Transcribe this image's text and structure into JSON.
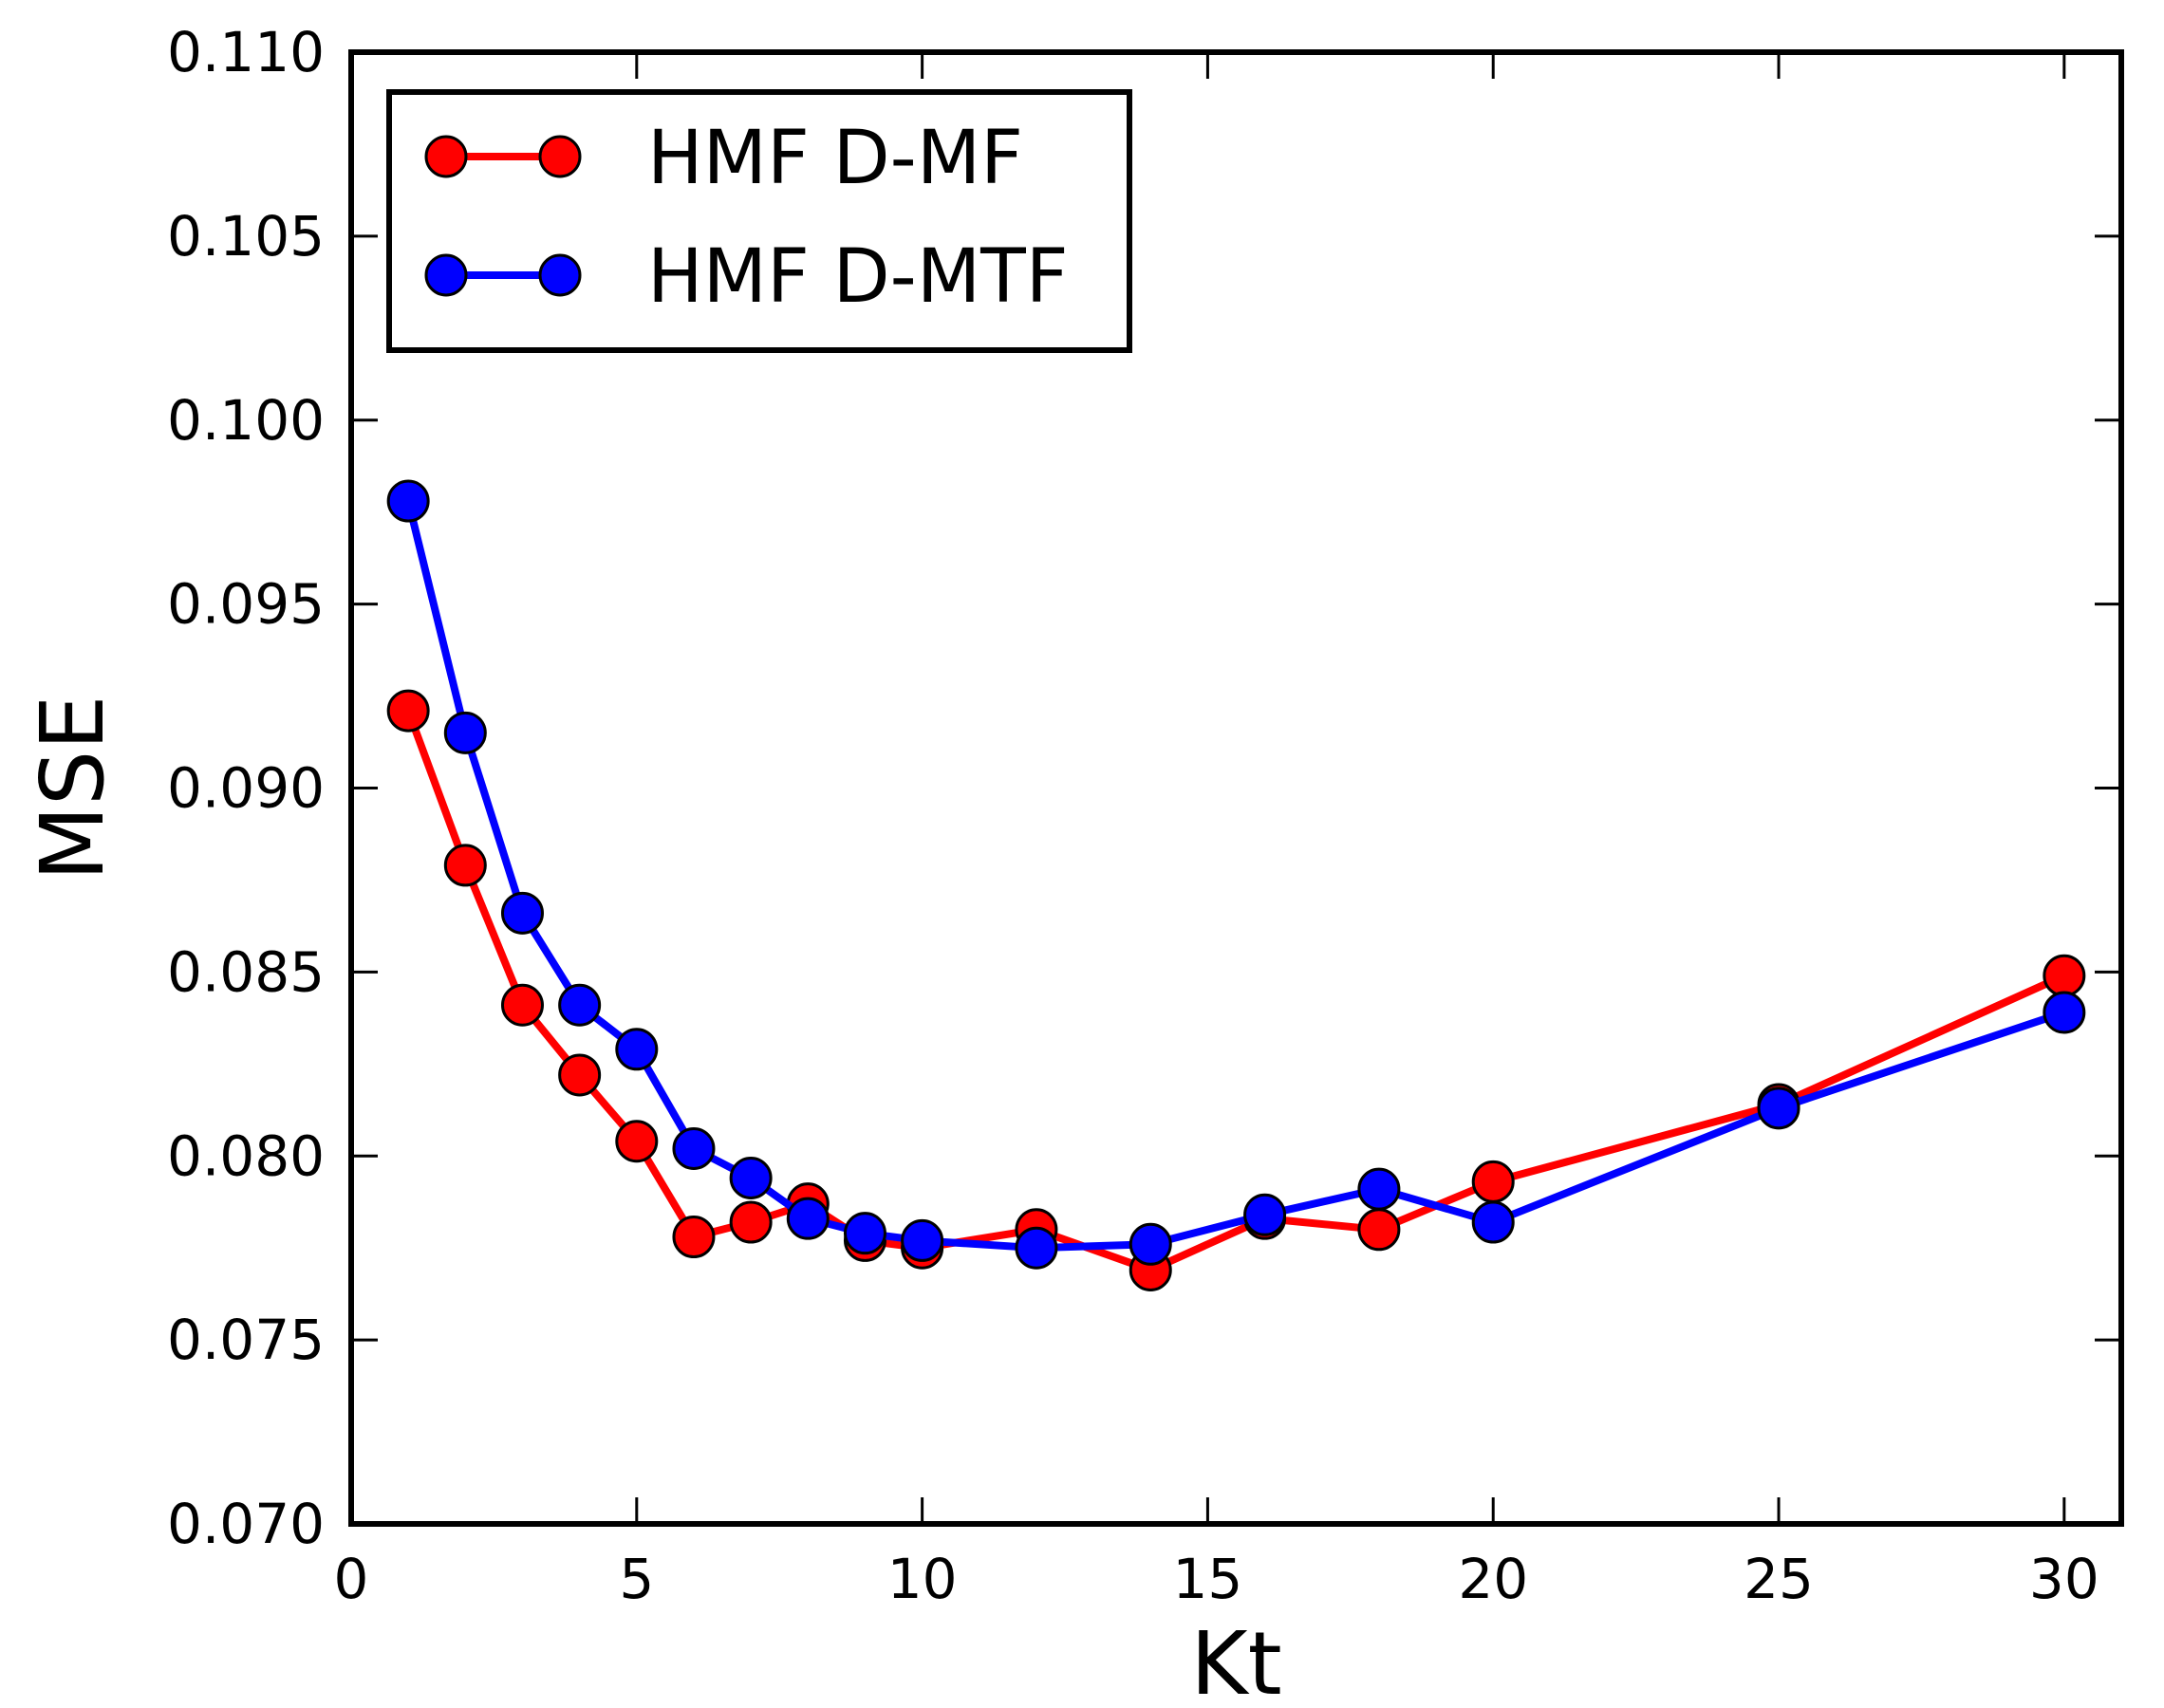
{
  "chart_data": {
    "type": "line",
    "xlabel": "Kt",
    "ylabel": "MSE",
    "xlim": [
      0,
      31
    ],
    "ylim": [
      0.07,
      0.11
    ],
    "xticks": [
      0,
      5,
      10,
      15,
      20,
      25,
      30
    ],
    "xtick_labels": [
      "0",
      "5",
      "10",
      "15",
      "20",
      "25",
      "30"
    ],
    "yticks": [
      0.07,
      0.075,
      0.08,
      0.085,
      0.09,
      0.095,
      0.1,
      0.105,
      0.11
    ],
    "ytick_labels": [
      "0.070",
      "0.075",
      "0.080",
      "0.085",
      "0.090",
      "0.095",
      "0.100",
      "0.105",
      "0.110"
    ],
    "grid": false,
    "legend_position": "top-left",
    "series": [
      {
        "name": "HMF D-MF",
        "color": "#ff0000",
        "marker": "circle",
        "x": [
          1,
          2,
          3,
          4,
          5,
          6,
          7,
          8,
          9,
          10,
          12,
          14,
          16,
          18,
          20,
          25,
          30
        ],
        "y": [
          0.0921,
          0.0879,
          0.0841,
          0.0822,
          0.0804,
          0.0778,
          0.0782,
          0.0787,
          0.0777,
          0.0775,
          0.078,
          0.0769,
          0.0783,
          0.078,
          0.0793,
          0.0814,
          0.0849
        ]
      },
      {
        "name": "HMF D-MTF",
        "color": "#0000ff",
        "marker": "circle",
        "x": [
          1,
          2,
          3,
          4,
          5,
          6,
          7,
          8,
          9,
          10,
          12,
          14,
          16,
          18,
          20,
          25,
          30
        ],
        "y": [
          0.0978,
          0.0915,
          0.0866,
          0.0841,
          0.0829,
          0.0802,
          0.0794,
          0.0783,
          0.0779,
          0.0777,
          0.0775,
          0.0776,
          0.0784,
          0.0791,
          0.0782,
          0.0813,
          0.0839
        ]
      }
    ]
  }
}
